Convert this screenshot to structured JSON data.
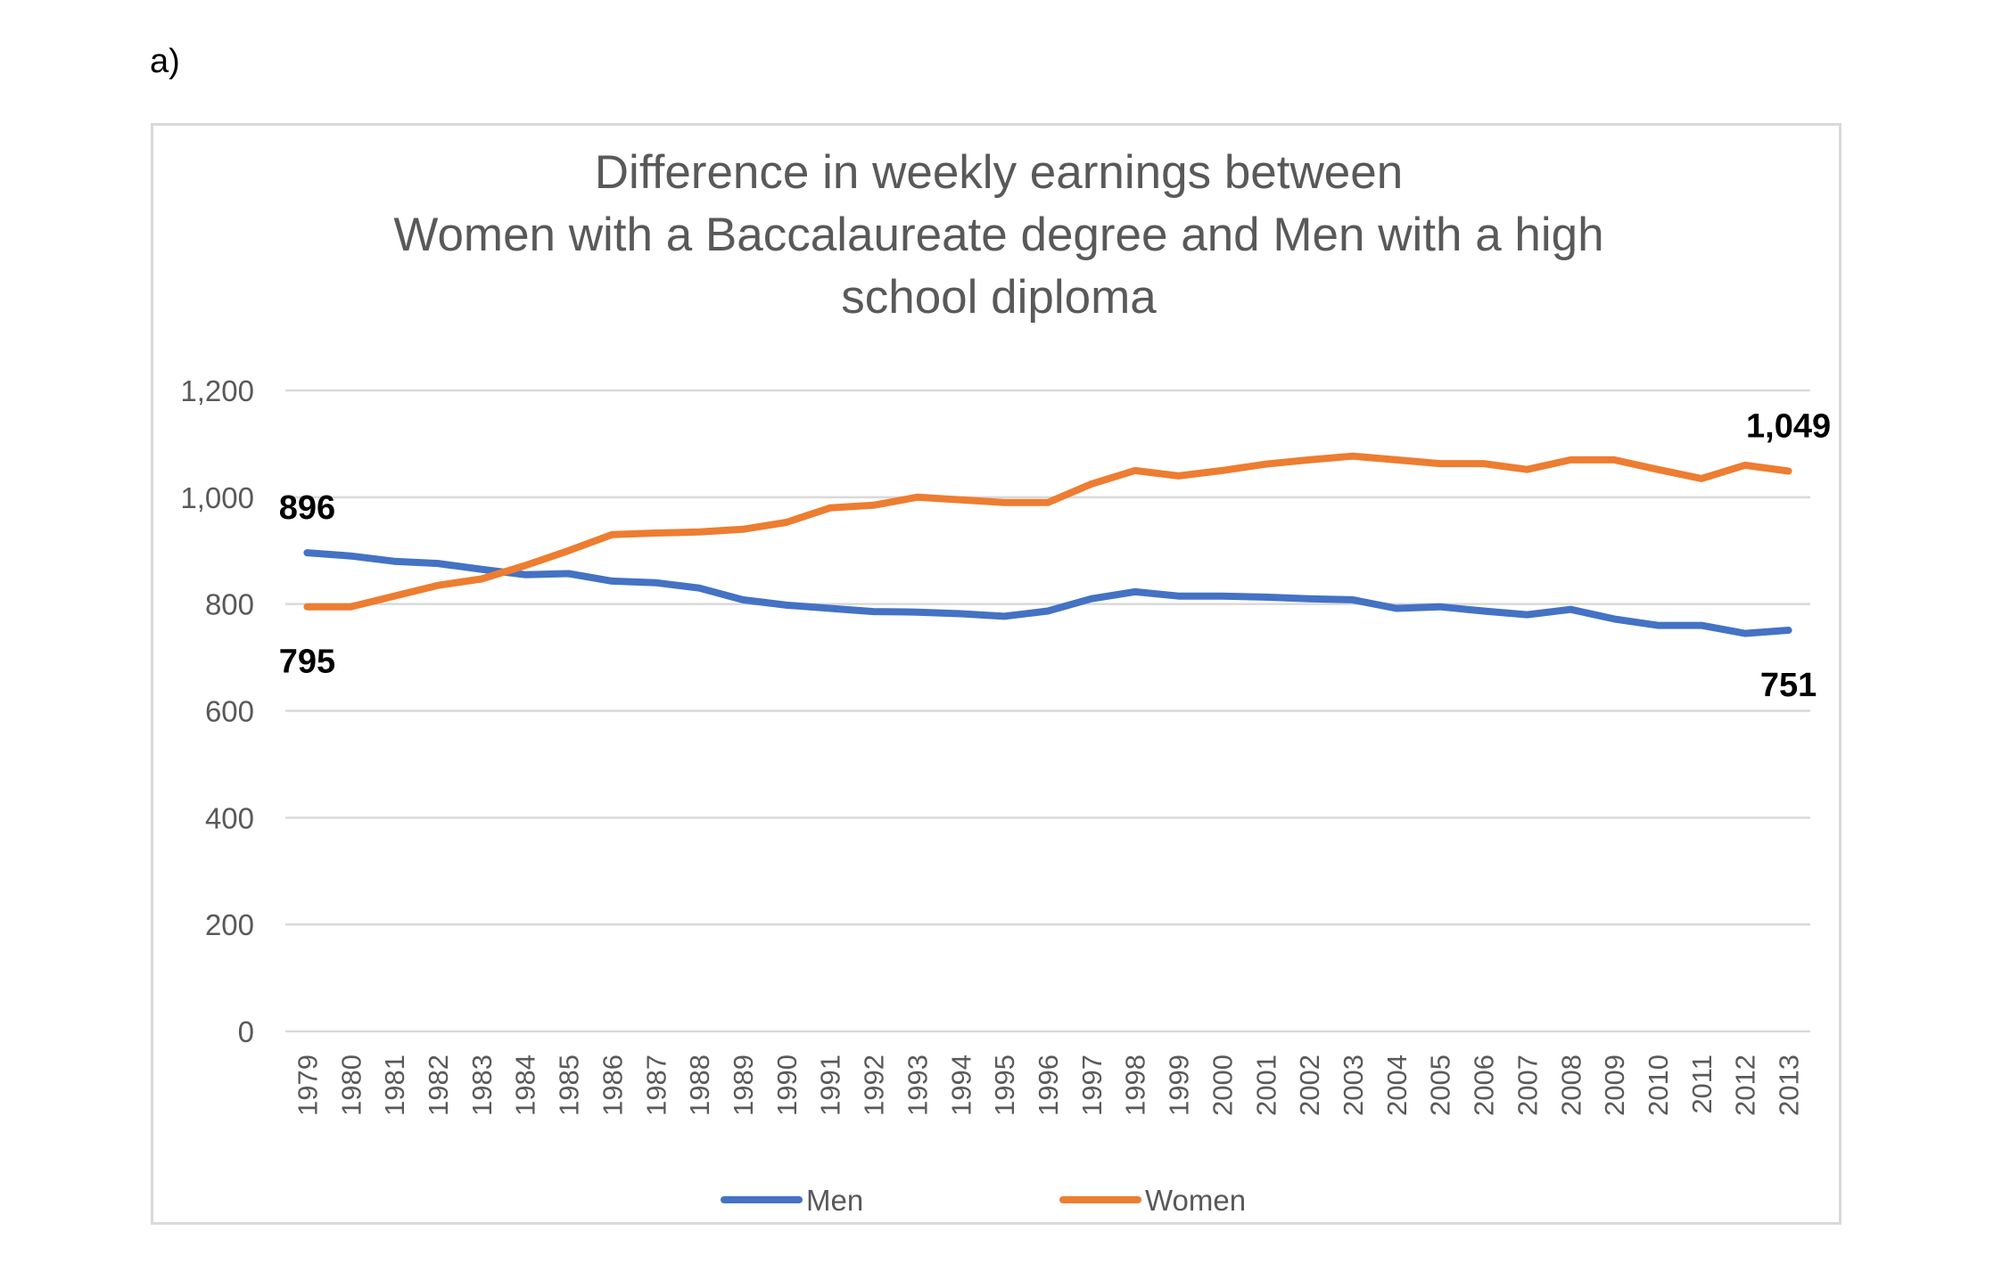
{
  "panel_label": "a)",
  "chart_data": {
    "type": "line",
    "title_lines": [
      "Difference in weekly earnings between",
      "Women with a Baccalaureate degree and Men with a high",
      "school diploma"
    ],
    "xlabel": "",
    "ylabel": "",
    "ylim": [
      0,
      1200
    ],
    "yticks": [
      0,
      200,
      400,
      600,
      800,
      1000,
      1200
    ],
    "ytick_labels": [
      "0",
      "200",
      "400",
      "600",
      "800",
      "1,000",
      "1,200"
    ],
    "grid": true,
    "legend_position": "bottom",
    "categories": [
      "1979",
      "1980",
      "1981",
      "1982",
      "1983",
      "1984",
      "1985",
      "1986",
      "1987",
      "1988",
      "1989",
      "1990",
      "1991",
      "1992",
      "1993",
      "1994",
      "1995",
      "1996",
      "1997",
      "1998",
      "1999",
      "2000",
      "2001",
      "2002",
      "2003",
      "2004",
      "2005",
      "2006",
      "2007",
      "2008",
      "2009",
      "2010",
      "2011",
      "2012",
      "2013"
    ],
    "series": [
      {
        "name": "Men",
        "color": "#4472c4",
        "values": [
          896,
          890,
          880,
          876,
          865,
          855,
          857,
          843,
          840,
          830,
          808,
          798,
          792,
          786,
          785,
          782,
          777,
          787,
          810,
          823,
          815,
          815,
          813,
          810,
          808,
          792,
          795,
          787,
          780,
          790,
          772,
          760,
          760,
          745,
          751
        ]
      },
      {
        "name": "Women",
        "color": "#ed7d31",
        "values": [
          795,
          795,
          815,
          835,
          847,
          872,
          900,
          930,
          933,
          935,
          940,
          953,
          980,
          985,
          1000,
          995,
          990,
          990,
          1025,
          1050,
          1040,
          1050,
          1062,
          1070,
          1077,
          1070,
          1063,
          1063,
          1052,
          1070,
          1070,
          1052,
          1035,
          1060,
          1049
        ]
      }
    ],
    "annotations": [
      {
        "series": "Men",
        "index": 0,
        "text": "896"
      },
      {
        "series": "Women",
        "index": 0,
        "text": "795"
      },
      {
        "series": "Women",
        "index": 34,
        "text": "1,049"
      },
      {
        "series": "Men",
        "index": 34,
        "text": "751"
      }
    ]
  }
}
